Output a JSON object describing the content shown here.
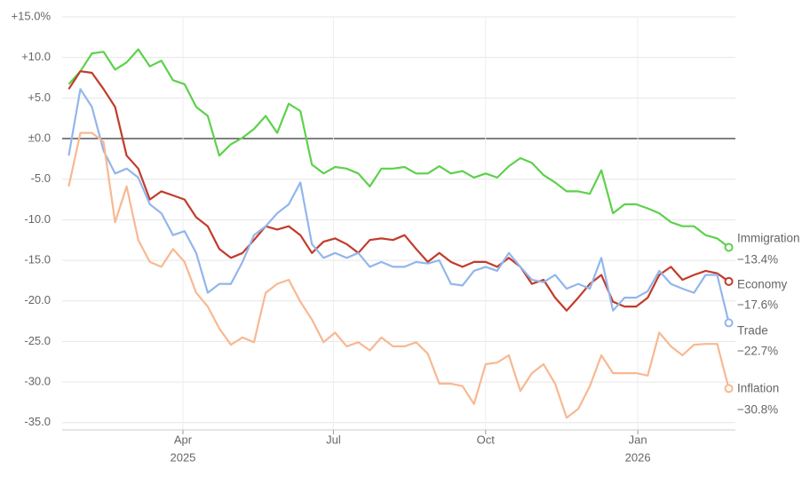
{
  "chart_data": {
    "type": "line",
    "x": [
      "2025-01-22",
      "2025-01-29",
      "2025-02-05",
      "2025-02-12",
      "2025-02-19",
      "2025-02-26",
      "2025-03-05",
      "2025-03-12",
      "2025-03-19",
      "2025-03-26",
      "2025-04-02",
      "2025-04-09",
      "2025-04-16",
      "2025-04-23",
      "2025-04-30",
      "2025-05-07",
      "2025-05-14",
      "2025-05-21",
      "2025-05-28",
      "2025-06-04",
      "2025-06-11",
      "2025-06-18",
      "2025-06-25",
      "2025-07-02",
      "2025-07-09",
      "2025-07-16",
      "2025-07-23",
      "2025-07-30",
      "2025-08-06",
      "2025-08-13",
      "2025-08-20",
      "2025-08-27",
      "2025-09-03",
      "2025-09-10",
      "2025-09-17",
      "2025-09-24",
      "2025-10-01",
      "2025-10-08",
      "2025-10-15",
      "2025-10-22",
      "2025-10-29",
      "2025-11-05",
      "2025-11-12",
      "2025-11-19",
      "2025-11-26",
      "2025-12-03",
      "2025-12-10",
      "2025-12-17",
      "2025-12-24",
      "2025-12-31",
      "2026-01-07",
      "2026-01-14",
      "2026-01-21",
      "2026-01-28",
      "2026-02-04",
      "2026-02-11",
      "2026-02-18",
      "2026-02-25"
    ],
    "xlim": [
      "2025-01-18",
      "2026-03-01"
    ],
    "xticks": [
      {
        "value": "2025-04-01",
        "label": "Apr",
        "year": "2025"
      },
      {
        "value": "2025-07-01",
        "label": "Jul"
      },
      {
        "value": "2025-10-01",
        "label": "Oct"
      },
      {
        "value": "2026-01-01",
        "label": "Jan",
        "year": "2026"
      }
    ],
    "ylim": [
      -35.9,
      15
    ],
    "yticks": [
      {
        "value": 15,
        "label": "+15.0%"
      },
      {
        "value": 10,
        "label": "+10.0"
      },
      {
        "value": 5,
        "label": "+5.0"
      },
      {
        "value": 0,
        "label": "±0.0"
      },
      {
        "value": -5,
        "label": "-5.0"
      },
      {
        "value": -10,
        "label": "-10.0"
      },
      {
        "value": -15,
        "label": "-15.0"
      },
      {
        "value": -20,
        "label": "-20.0"
      },
      {
        "value": -25,
        "label": "-25.0"
      },
      {
        "value": -30,
        "label": "-30.0"
      },
      {
        "value": -35,
        "label": "-35.0"
      }
    ],
    "grid": true,
    "series": [
      {
        "name": "Immigration",
        "color": "#5dd14b",
        "label_color": "#2e9a22",
        "last_label": "−13.4%",
        "values": [
          6.7,
          8.3,
          10.5,
          10.7,
          8.5,
          9.4,
          11,
          8.9,
          9.6,
          7.2,
          6.7,
          3.9,
          2.8,
          -2.1,
          -0.7,
          0.1,
          1.2,
          2.8,
          0.7,
          4.3,
          3.4,
          -3.2,
          -4.3,
          -3.5,
          -3.7,
          -4.3,
          -5.9,
          -3.7,
          -3.7,
          -3.5,
          -4.3,
          -4.3,
          -3.4,
          -4.3,
          -4.0,
          -4.8,
          -4.3,
          -4.8,
          -3.4,
          -2.4,
          -3.0,
          -4.5,
          -5.4,
          -6.5,
          -6.5,
          -6.8,
          -3.9,
          -9.2,
          -8.1,
          -8.1,
          -8.6,
          -9.2,
          -10.3,
          -10.8,
          -10.8,
          -11.9,
          -12.3,
          -13.4
        ]
      },
      {
        "name": "Economy",
        "color": "#c23b2a",
        "label_color": "#c23b2a",
        "last_label": "−17.6%",
        "values": [
          6.1,
          8.3,
          8.1,
          6.1,
          3.9,
          -2.1,
          -3.7,
          -7.5,
          -6.5,
          -7.0,
          -7.5,
          -9.7,
          -10.8,
          -13.6,
          -14.7,
          -14.1,
          -12.5,
          -10.8,
          -11.2,
          -10.8,
          -11.9,
          -14.1,
          -12.7,
          -12.3,
          -13.0,
          -14.1,
          -12.5,
          -12.3,
          -12.5,
          -11.9,
          -13.6,
          -15.2,
          -14.1,
          -15.2,
          -15.8,
          -15.2,
          -15.2,
          -15.8,
          -14.7,
          -15.8,
          -17.9,
          -17.4,
          -19.6,
          -21.2,
          -19.6,
          -17.9,
          -16.8,
          -20.1,
          -20.7,
          -20.7,
          -19.6,
          -16.8,
          -15.8,
          -17.4,
          -16.8,
          -16.3,
          -16.6,
          -17.6
        ]
      },
      {
        "name": "Trade",
        "color": "#92b6ec",
        "label_color": "#4a76b3",
        "last_label": "−22.7%",
        "values": [
          -2.1,
          6.1,
          3.9,
          -1.5,
          -4.3,
          -3.7,
          -4.8,
          -8.1,
          -9.2,
          -11.9,
          -11.4,
          -14.1,
          -19.0,
          -17.9,
          -17.9,
          -15.2,
          -11.9,
          -10.8,
          -9.2,
          -8.1,
          -5.4,
          -13.0,
          -14.7,
          -14.1,
          -14.7,
          -14.1,
          -15.8,
          -15.2,
          -15.8,
          -15.8,
          -15.2,
          -15.4,
          -15.0,
          -17.9,
          -18.1,
          -16.3,
          -15.8,
          -16.3,
          -14.1,
          -15.8,
          -17.4,
          -17.7,
          -16.8,
          -18.5,
          -17.9,
          -18.5,
          -14.7,
          -21.2,
          -19.6,
          -19.6,
          -18.8,
          -16.3,
          -17.9,
          -18.5,
          -19.0,
          -16.8,
          -16.8,
          -22.7
        ]
      },
      {
        "name": "Inflation",
        "color": "#f8b892",
        "label_color": "#a2683e",
        "last_label": "−30.8%",
        "values": [
          -5.9,
          0.7,
          0.7,
          -0.4,
          -10.3,
          -5.9,
          -12.5,
          -15.2,
          -15.8,
          -13.6,
          -15.2,
          -19.0,
          -20.7,
          -23.4,
          -25.4,
          -24.5,
          -25.1,
          -19.0,
          -17.9,
          -17.4,
          -20.1,
          -22.3,
          -25.1,
          -23.9,
          -25.6,
          -25.1,
          -26.1,
          -24.5,
          -25.6,
          -25.6,
          -25.1,
          -26.5,
          -30.2,
          -30.2,
          -30.5,
          -32.7,
          -27.8,
          -27.6,
          -26.7,
          -31.1,
          -28.9,
          -27.8,
          -30.2,
          -34.4,
          -33.3,
          -30.5,
          -26.7,
          -28.9,
          -28.9,
          -28.9,
          -29.2,
          -23.9,
          -25.6,
          -26.7,
          -25.4,
          -25.3,
          -25.3,
          -30.8
        ]
      }
    ]
  }
}
